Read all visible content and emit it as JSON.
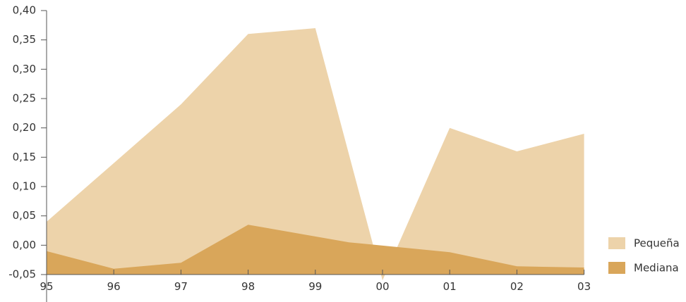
{
  "chart_data": {
    "type": "area",
    "title": "",
    "xlabel": "",
    "ylabel": "",
    "categories": [
      "95",
      "96",
      "97",
      "98",
      "99",
      "00",
      "01",
      "02",
      "03"
    ],
    "y_ticks": [
      "0,40",
      "0,35",
      "0,30",
      "0,25",
      "0,20",
      "0,15",
      "0,10",
      "0,05",
      "0,00",
      "-0,05"
    ],
    "ylim": [
      -0.05,
      0.4
    ],
    "grid": false,
    "legend_position": "right",
    "series": [
      {
        "name": "Pequeña",
        "color": "#edd3aa",
        "x": [
          0,
          1,
          2,
          3,
          4,
          5,
          6,
          7,
          8
        ],
        "values": [
          0.04,
          0.14,
          0.24,
          0.36,
          0.37,
          -0.06,
          0.2,
          0.16,
          0.19
        ]
      },
      {
        "name": "Mediana",
        "color": "#d9a65a",
        "x": [
          0,
          1,
          2,
          3,
          4.5,
          6,
          7,
          8
        ],
        "values": [
          -0.01,
          -0.04,
          -0.03,
          0.035,
          0.005,
          -0.012,
          -0.036,
          -0.038
        ]
      }
    ]
  }
}
